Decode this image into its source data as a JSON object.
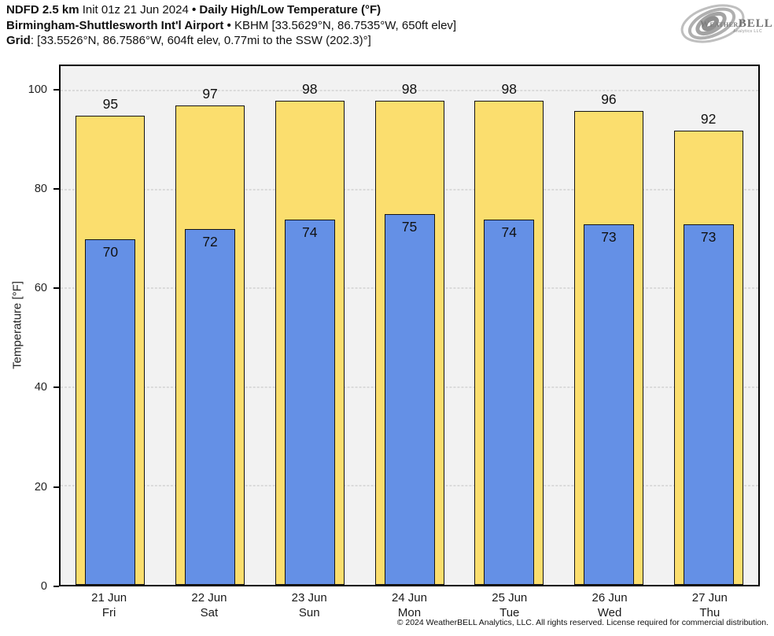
{
  "header": {
    "line1": {
      "model": "NDFD 2.5 km",
      "init": " Init 01z 21 Jun 2024 ",
      "title": "• Daily High/Low Temperature (°F)"
    },
    "line2": {
      "station": "Birmingham-Shuttlesworth Int'l Airport",
      "sep": " • ",
      "details": "KBHM [33.5629°N, 86.7535°W, 650ft elev]"
    },
    "line3": {
      "label": "Grid",
      "details": ": [33.5526°N, 86.7586°W, 604ft elev, 0.77mi to the SSW (202.3)°]"
    }
  },
  "logo": {
    "weather": "Weather",
    "bell": "BELL",
    "subtitle": "Analytics LLC"
  },
  "chart_data": {
    "type": "bar",
    "title": "Daily High/Low Temperature (°F)",
    "ylabel": "Temperature [°F]",
    "ylim": [
      0,
      105
    ],
    "yticks": [
      0,
      20,
      40,
      60,
      80,
      100
    ],
    "grid": true,
    "legend": "none",
    "categories": [
      {
        "date": "21 Jun",
        "weekday": "Fri"
      },
      {
        "date": "22 Jun",
        "weekday": "Sat"
      },
      {
        "date": "23 Jun",
        "weekday": "Sun"
      },
      {
        "date": "24 Jun",
        "weekday": "Mon"
      },
      {
        "date": "25 Jun",
        "weekday": "Tue"
      },
      {
        "date": "26 Jun",
        "weekday": "Wed"
      },
      {
        "date": "27 Jun",
        "weekday": "Thu"
      }
    ],
    "series": [
      {
        "name": "High",
        "color": "#FBDE6E",
        "values": [
          95,
          97,
          98,
          98,
          98,
          96,
          92
        ]
      },
      {
        "name": "Low",
        "color": "#6490E6",
        "values": [
          70,
          72,
          74,
          75,
          74,
          73,
          73
        ]
      }
    ]
  },
  "footer": {
    "copyright": "© 2024 WeatherBELL Analytics, LLC. All rights reserved. License required for commercial distribution."
  }
}
